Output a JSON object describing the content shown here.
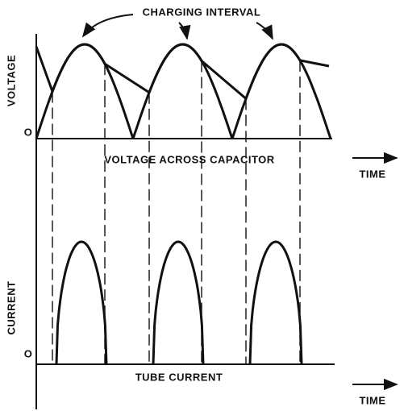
{
  "top": {
    "annotation": "CHARGING INTERVAL",
    "y_label": "VOLTAGE",
    "origin": "O",
    "caption": "VOLTAGE ACROSS CAPACITOR",
    "x_label": "TIME"
  },
  "bottom": {
    "y_label": "CURRENT",
    "origin": "O",
    "caption": "TUBE CURRENT",
    "x_label": "TIME"
  }
}
